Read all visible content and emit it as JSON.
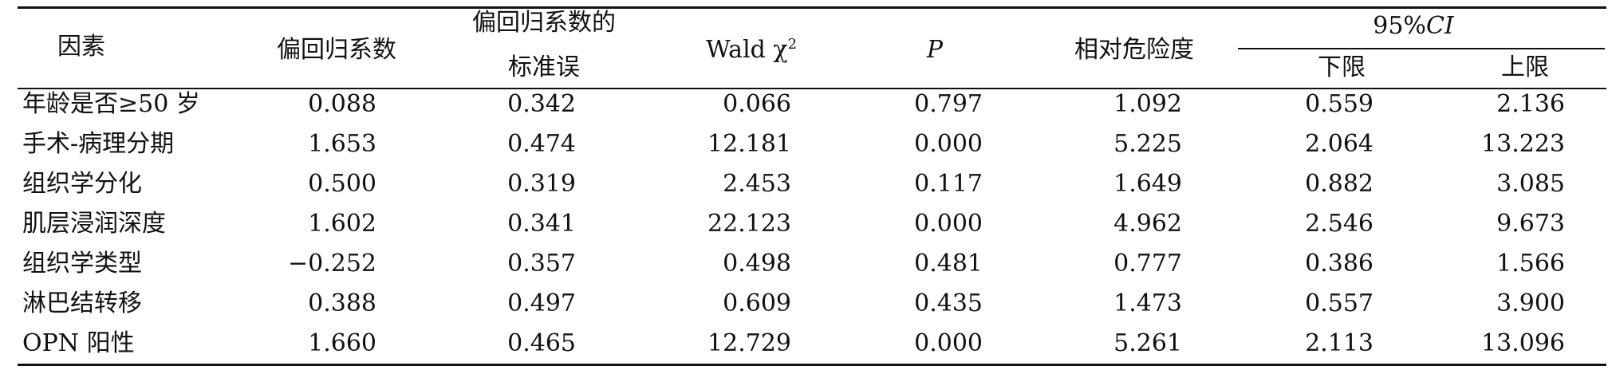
{
  "headers": {
    "factor": "因素",
    "coef": "偏回归系数",
    "se_line1": "偏回归系数的",
    "se_line2": "标准误",
    "wald": "Wald χ",
    "wald_sup": "2",
    "p": "P",
    "rr": "相对危险度",
    "ci_prefix": "95%",
    "ci_italic": "CI",
    "lower": "下限",
    "upper": "上限"
  },
  "rows": [
    {
      "factor": "年龄是否≥50 岁",
      "coef": "0.088",
      "se": "0.342",
      "wald": "0.066",
      "p": "0.797",
      "rr": "1.092",
      "lower": "0.559",
      "upper": "2.136"
    },
    {
      "factor": "手术-病理分期",
      "coef": "1.653",
      "se": "0.474",
      "wald": "12.181",
      "p": "0.000",
      "rr": "5.225",
      "lower": "2.064",
      "upper": "13.223"
    },
    {
      "factor": "组织学分化",
      "coef": "0.500",
      "se": "0.319",
      "wald": "2.453",
      "p": "0.117",
      "rr": "1.649",
      "lower": "0.882",
      "upper": "3.085"
    },
    {
      "factor": "肌层浸润深度",
      "coef": "1.602",
      "se": "0.341",
      "wald": "22.123",
      "p": "0.000",
      "rr": "4.962",
      "lower": "2.546",
      "upper": "9.673"
    },
    {
      "factor": "组织学类型",
      "coef": "−0.252",
      "se": "0.357",
      "wald": "0.498",
      "p": "0.481",
      "rr": "0.777",
      "lower": "0.386",
      "upper": "1.566"
    },
    {
      "factor": "淋巴结转移",
      "coef": "0.388",
      "se": "0.497",
      "wald": "0.609",
      "p": "0.435",
      "rr": "1.473",
      "lower": "0.557",
      "upper": "3.900"
    },
    {
      "factor": "OPN 阳性",
      "coef": "1.660",
      "se": "0.465",
      "wald": "12.729",
      "p": "0.000",
      "rr": "5.261",
      "lower": "2.113",
      "upper": "13.096"
    }
  ]
}
